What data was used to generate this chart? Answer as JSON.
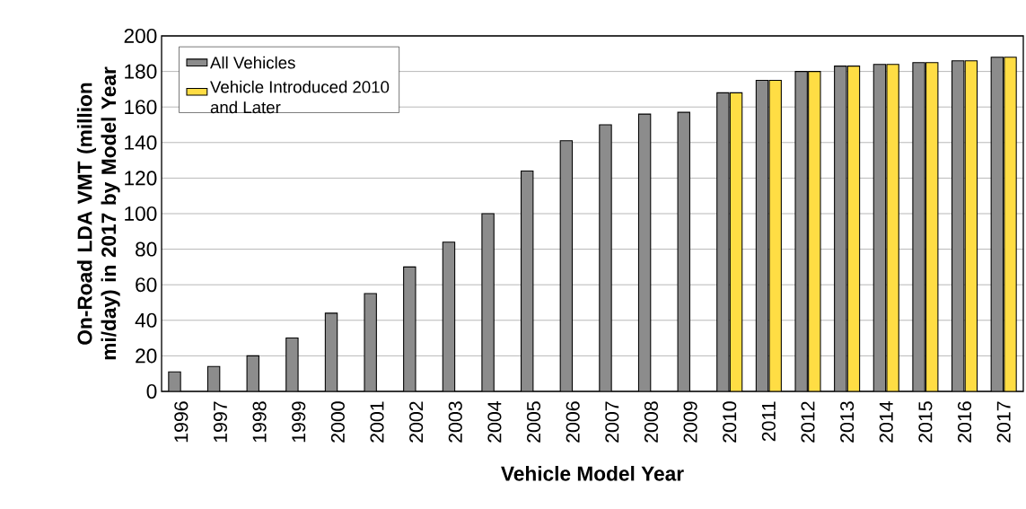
{
  "chart_data": {
    "type": "bar",
    "xlabel": "Vehicle Model Year",
    "ylabel": "On-Road LDA VMT (million mi/day) in 2017 by Model Year",
    "categories": [
      "1996",
      "1997",
      "1998",
      "1999",
      "2000",
      "2001",
      "2002",
      "2003",
      "2004",
      "2005",
      "2006",
      "2007",
      "2008",
      "2009",
      "2010",
      "2011",
      "2012",
      "2013",
      "2014",
      "2015",
      "2016",
      "2017"
    ],
    "series": [
      {
        "name": "All Vehicles",
        "color": "#8c8c8c",
        "values": [
          11,
          14,
          20,
          30,
          44,
          55,
          70,
          84,
          100,
          124,
          141,
          150,
          156,
          157,
          168,
          175,
          180,
          183,
          184,
          185,
          186,
          188
        ]
      },
      {
        "name": "Vehicle Introduced 2010 and Later",
        "color": "#ffdd44",
        "values": [
          null,
          null,
          null,
          null,
          null,
          null,
          null,
          null,
          null,
          null,
          null,
          null,
          null,
          null,
          168,
          175,
          180,
          183,
          184,
          185,
          186,
          188
        ]
      }
    ],
    "ylim": [
      0,
      200
    ],
    "yticks": [
      0,
      20,
      40,
      60,
      80,
      100,
      120,
      140,
      160,
      180,
      200
    ],
    "grid": "y",
    "legend": "top left"
  }
}
